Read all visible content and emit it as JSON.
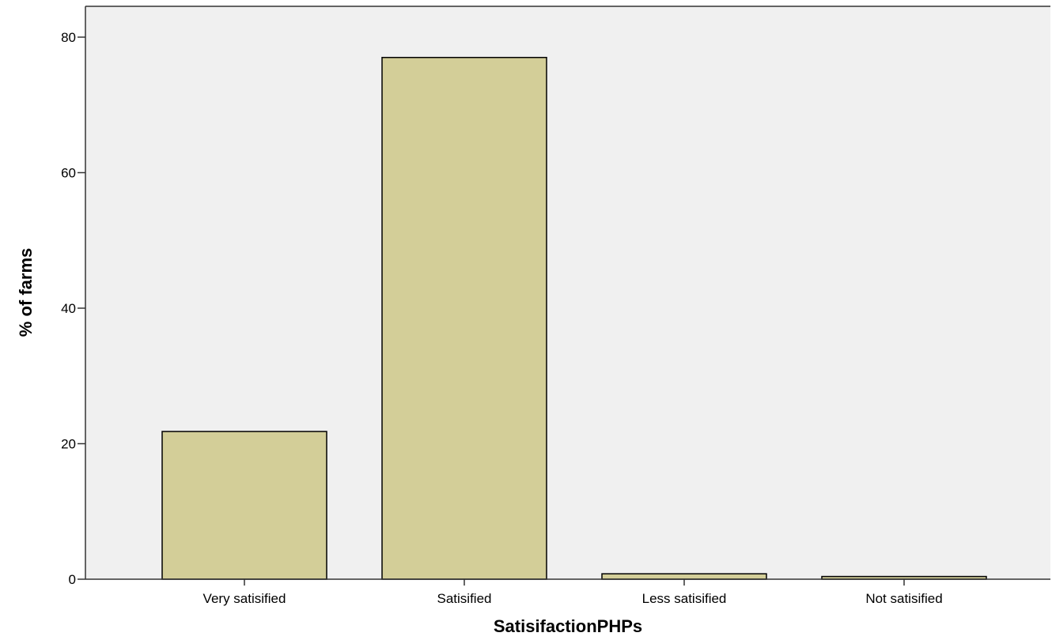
{
  "colors": {
    "plot_background": "#f0f0f0",
    "bar_fill": "#d3ce98",
    "bar_stroke": "#000000",
    "axis": "#333333"
  },
  "chart_data": {
    "type": "bar",
    "title": "",
    "xlabel": "SatisifactionPHPs",
    "ylabel": "% of farms",
    "categories": [
      "Very satisified",
      "Satisified",
      "Less satisified",
      "Not satisified"
    ],
    "values": [
      21.8,
      77.0,
      0.8,
      0.4
    ],
    "ylim": [
      0,
      80
    ],
    "yticks": [
      "0",
      "20",
      "40",
      "60",
      "80"
    ],
    "grid": false,
    "legend": "none"
  }
}
